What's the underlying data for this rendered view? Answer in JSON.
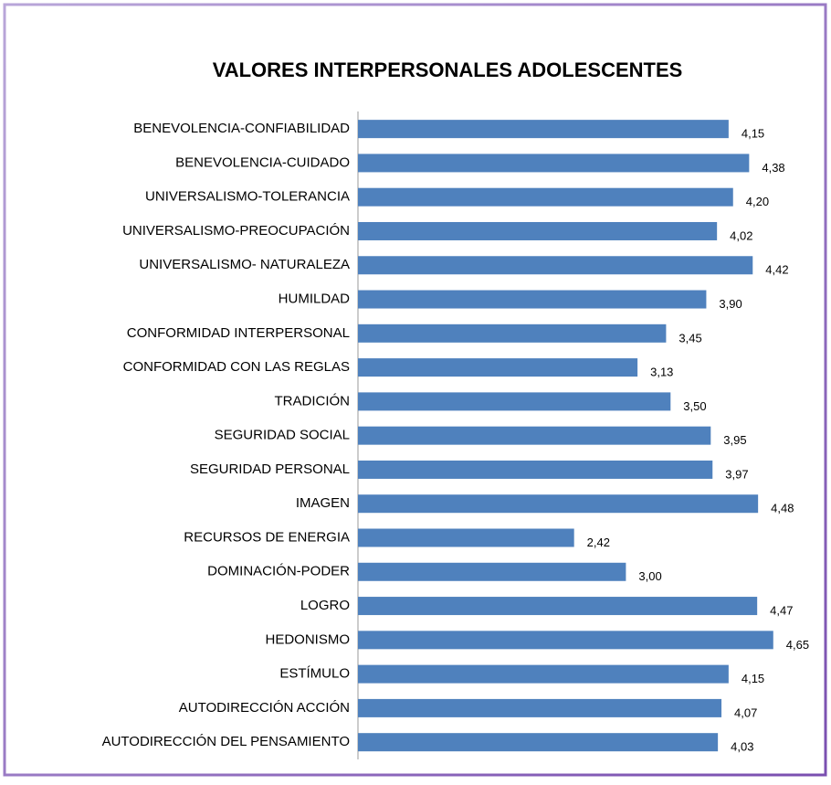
{
  "chart_data": {
    "type": "bar",
    "orientation": "horizontal",
    "title": "VALORES INTERPERSONALES ADOLESCENTES",
    "categories": [
      "BENEVOLENCIA-CONFIABILIDAD",
      "BENEVOLENCIA-CUIDADO",
      "UNIVERSALISMO-TOLERANCIA",
      "UNIVERSALISMO-PREOCUPACIÓN",
      "UNIVERSALISMO- NATURALEZA",
      "HUMILDAD",
      "CONFORMIDAD INTERPERSONAL",
      "CONFORMIDAD CON LAS REGLAS",
      "TRADICIÓN",
      "SEGURIDAD SOCIAL",
      "SEGURIDAD PERSONAL",
      "IMAGEN",
      "RECURSOS DE ENERGIA",
      "DOMINACIÓN-PODER",
      "LOGRO",
      "HEDONISMO",
      "ESTÍMULO",
      "AUTODIRECCIÓN ACCIÓN",
      "AUTODIRECCIÓN DEL PENSAMIENTO"
    ],
    "values": [
      4.15,
      4.38,
      4.2,
      4.02,
      4.42,
      3.9,
      3.45,
      3.13,
      3.5,
      3.95,
      3.97,
      4.48,
      2.42,
      3.0,
      4.47,
      4.65,
      4.15,
      4.07,
      4.03
    ],
    "value_labels": [
      "4,15",
      "4,38",
      "4,20",
      "4,02",
      "4,42",
      "3,90",
      "3,45",
      "3,13",
      "3,50",
      "3,95",
      "3,97",
      "4,48",
      "2,42",
      "3,00",
      "4,47",
      "4,65",
      "4,15",
      "4,07",
      "4,03"
    ],
    "color": "#4f81bd",
    "xlim": [
      0,
      5
    ]
  }
}
